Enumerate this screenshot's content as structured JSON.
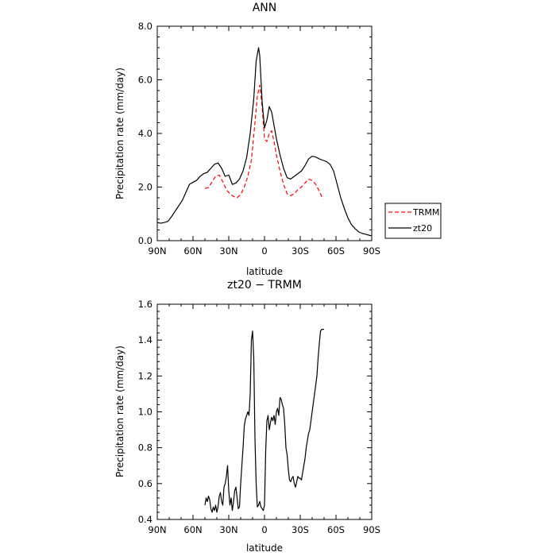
{
  "chart_data": [
    {
      "type": "line",
      "title": "ANN",
      "xlabel": "latitude",
      "ylabel": "Precipitation rate (mm/day)",
      "xlim": [
        -90,
        90
      ],
      "ylim": [
        0,
        8
      ],
      "x_ticks": [
        -90,
        -60,
        -30,
        0,
        30,
        60,
        90
      ],
      "x_tick_labels": [
        "90N",
        "60N",
        "30N",
        "0",
        "30S",
        "60S",
        "90S"
      ],
      "y_ticks": [
        0,
        2,
        4,
        6,
        8
      ],
      "y_tick_labels": [
        "0.0",
        "2.0",
        "4.0",
        "6.0",
        "8.0"
      ],
      "legend_position": "right",
      "series": [
        {
          "name": "TRMM",
          "color": "#ff0000",
          "style": "dashed",
          "x": [
            -50,
            -47,
            -44,
            -41,
            -38,
            -35,
            -32,
            -29,
            -26,
            -23,
            -20,
            -17,
            -14,
            -11,
            -8,
            -6,
            -4,
            -2,
            0,
            2,
            4,
            6,
            8,
            10,
            13,
            16,
            19,
            22,
            25,
            28,
            31,
            34,
            37,
            40,
            43,
            46,
            49
          ],
          "y": [
            1.95,
            1.98,
            2.2,
            2.4,
            2.45,
            2.2,
            1.9,
            1.75,
            1.65,
            1.6,
            1.72,
            2.0,
            2.4,
            3.0,
            4.4,
            5.4,
            5.8,
            5.0,
            3.8,
            3.7,
            4.0,
            4.1,
            3.7,
            3.2,
            2.6,
            2.1,
            1.75,
            1.68,
            1.75,
            1.9,
            2.0,
            2.15,
            2.3,
            2.25,
            2.1,
            1.85,
            1.55
          ]
        },
        {
          "name": "zt20",
          "color": "#000000",
          "style": "solid",
          "x": [
            -90,
            -87,
            -84,
            -81,
            -78,
            -75,
            -72,
            -69,
            -66,
            -63,
            -60,
            -57,
            -54,
            -51,
            -48,
            -45,
            -42,
            -39,
            -36,
            -33,
            -30,
            -27,
            -24,
            -21,
            -18,
            -15,
            -12,
            -9,
            -7,
            -5,
            -4,
            -2,
            0,
            2,
            4,
            6,
            8,
            10,
            13,
            16,
            19,
            22,
            25,
            28,
            31,
            34,
            37,
            40,
            43,
            46,
            49,
            52,
            55,
            58,
            61,
            64,
            67,
            70,
            73,
            76,
            79,
            82,
            85,
            88,
            90
          ],
          "y": [
            0.68,
            0.65,
            0.68,
            0.72,
            0.9,
            1.1,
            1.3,
            1.5,
            1.8,
            2.1,
            2.18,
            2.25,
            2.4,
            2.5,
            2.55,
            2.7,
            2.85,
            2.9,
            2.7,
            2.4,
            2.45,
            2.1,
            2.15,
            2.3,
            2.6,
            3.1,
            4.0,
            5.3,
            6.7,
            7.2,
            6.9,
            5.2,
            4.2,
            4.5,
            5.0,
            4.8,
            4.3,
            3.8,
            3.2,
            2.7,
            2.35,
            2.3,
            2.4,
            2.5,
            2.6,
            2.8,
            3.05,
            3.15,
            3.12,
            3.05,
            3.0,
            2.95,
            2.85,
            2.6,
            2.1,
            1.6,
            1.2,
            0.85,
            0.6,
            0.45,
            0.33,
            0.27,
            0.24,
            0.2,
            0.18
          ]
        }
      ]
    },
    {
      "type": "line",
      "title": "zt20 − TRMM",
      "xlabel": "latitude",
      "ylabel": "Precipitation rate (mm/day)",
      "xlim": [
        -90,
        90
      ],
      "ylim": [
        0.4,
        1.6
      ],
      "x_ticks": [
        -90,
        -60,
        -30,
        0,
        30,
        60,
        90
      ],
      "x_tick_labels": [
        "90N",
        "60N",
        "30N",
        "0",
        "30S",
        "60S",
        "90S"
      ],
      "y_ticks": [
        0.4,
        0.6,
        0.8,
        1.0,
        1.2,
        1.4,
        1.6
      ],
      "y_tick_labels": [
        "0.4",
        "0.6",
        "0.8",
        "1.0",
        "1.2",
        "1.4",
        "1.6"
      ],
      "series": [
        {
          "color": "#000000",
          "style": "solid",
          "x": [
            -50,
            -49,
            -48,
            -47,
            -46,
            -45,
            -44,
            -43,
            -42,
            -41,
            -40,
            -39,
            -38,
            -37,
            -36,
            -35,
            -34,
            -33,
            -32,
            -31,
            -30,
            -29,
            -28,
            -27,
            -26,
            -25,
            -24,
            -23,
            -22,
            -21,
            -20,
            -19,
            -18,
            -17,
            -16,
            -15,
            -14,
            -13,
            -12,
            -11,
            -10,
            -9,
            -8,
            -7,
            -6,
            -5,
            -4,
            -3,
            -2,
            -1,
            0,
            1,
            2,
            3,
            4,
            5,
            6,
            7,
            8,
            9,
            10,
            11,
            12,
            13,
            14,
            15,
            16,
            17,
            18,
            19,
            20,
            21,
            22,
            23,
            24,
            25,
            26,
            27,
            28,
            29,
            30,
            31,
            32,
            33,
            34,
            35,
            36,
            37,
            38,
            39,
            40,
            41,
            42,
            43,
            44,
            45,
            46,
            47,
            48,
            49,
            50
          ],
          "y": [
            0.48,
            0.52,
            0.5,
            0.53,
            0.51,
            0.46,
            0.44,
            0.47,
            0.45,
            0.48,
            0.44,
            0.47,
            0.53,
            0.55,
            0.5,
            0.48,
            0.58,
            0.6,
            0.64,
            0.7,
            0.56,
            0.48,
            0.52,
            0.45,
            0.5,
            0.56,
            0.58,
            0.52,
            0.46,
            0.47,
            0.6,
            0.7,
            0.8,
            0.92,
            0.96,
            0.98,
            1.0,
            0.98,
            1.1,
            1.4,
            1.45,
            1.3,
            0.85,
            0.6,
            0.47,
            0.48,
            0.5,
            0.47,
            0.46,
            0.45,
            0.48,
            0.78,
            0.95,
            0.98,
            0.9,
            0.94,
            0.97,
            0.95,
            0.98,
            0.93,
            1.0,
            1.02,
            0.98,
            1.08,
            1.07,
            1.04,
            1.02,
            0.93,
            0.8,
            0.76,
            0.68,
            0.62,
            0.61,
            0.63,
            0.64,
            0.6,
            0.58,
            0.61,
            0.64,
            0.63,
            0.63,
            0.62,
            0.66,
            0.7,
            0.74,
            0.8,
            0.84,
            0.88,
            0.9,
            0.95,
            1.0,
            1.05,
            1.1,
            1.15,
            1.2,
            1.3,
            1.38,
            1.45,
            1.46,
            1.46,
            1.46
          ]
        }
      ]
    }
  ]
}
